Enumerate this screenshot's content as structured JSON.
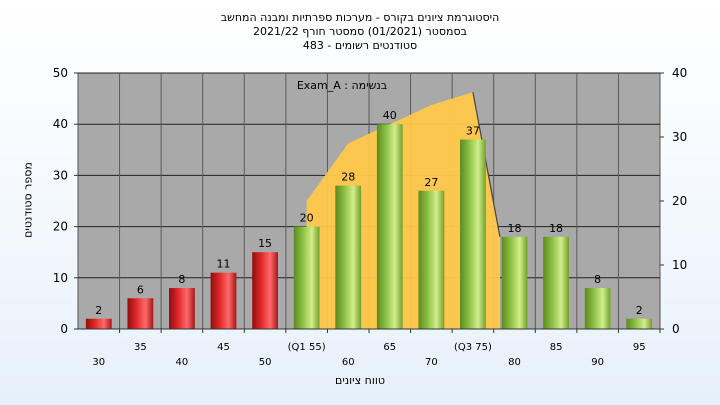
{
  "header": {
    "title_line1": "היסטוגרמת ציונים בקורס - מערכות ספרתיות ומבנה המחשב",
    "title_line2": "בסמסטר   (01/2021)  סמסטר חורף 2021/22",
    "title_line3": "סטודנטים רשומים - 483"
  },
  "axes": {
    "ylabel": "מספר סטודנטים",
    "xlabel": "טווח ציונים"
  },
  "colors": {
    "plot_background": "#a9a9a9",
    "low_bars": "#e02828",
    "high_bars": "#8cc043",
    "area": "#ffc84a",
    "area_line": "#444444"
  },
  "chart_data": {
    "type": "bar",
    "title": "היסטוגרמת ציונים בקורס - מערכות ספרתיות ומבנה המחשב",
    "xlabel": "טווח ציונים",
    "ylabel": "מספר סטודנטים",
    "categories": [
      "30",
      "35",
      "40",
      "45",
      "50",
      "(Q1 55)",
      "60",
      "65",
      "70",
      "(Q3 75)",
      "80",
      "85",
      "90",
      "95"
    ],
    "values": [
      2,
      6,
      8,
      11,
      15,
      20,
      28,
      40,
      27,
      37,
      18,
      18,
      8,
      2
    ],
    "bar_colors": [
      "red",
      "red",
      "red",
      "red",
      "red",
      "green",
      "green",
      "green",
      "green",
      "green",
      "green",
      "green",
      "green",
      "green"
    ],
    "ylim": [
      0,
      50
    ],
    "y_ticks": [
      0,
      10,
      20,
      30,
      40,
      50
    ],
    "y2lim": [
      0,
      40
    ],
    "y2_ticks": [
      0,
      10,
      20,
      30,
      40
    ],
    "grid": true,
    "annotation": "Exam_A : בנשימה",
    "area_series": {
      "x_range": [
        "(Q1 55)",
        "(Q3 75)"
      ],
      "values": [
        20,
        29,
        32,
        35,
        37
      ]
    }
  }
}
